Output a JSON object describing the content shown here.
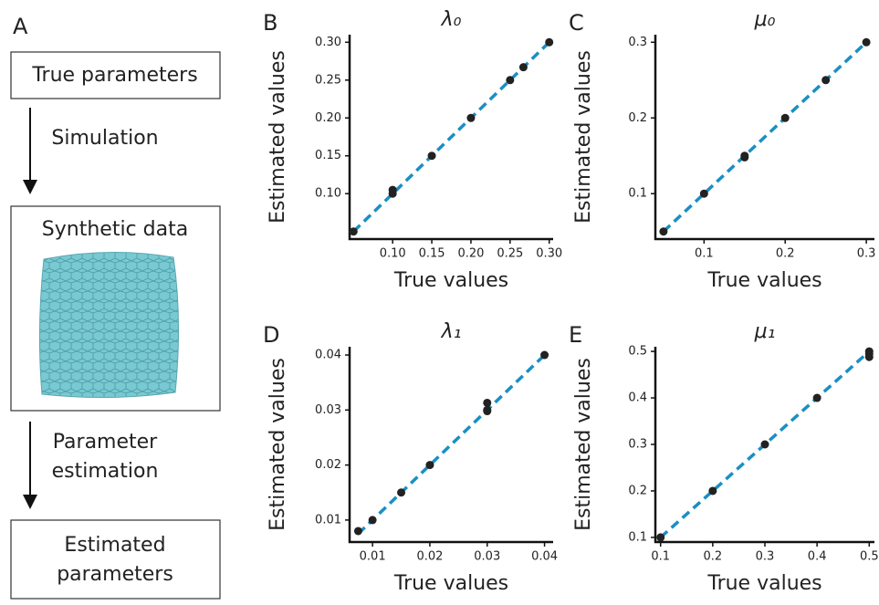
{
  "diagram": {
    "panel_label": "A",
    "box1": "True parameters",
    "step1": "Simulation",
    "box2": "Synthetic data",
    "step2_line1": "Parameter",
    "step2_line2": "estimation",
    "box3_line1": "Estimated",
    "box3_line2": "parameters"
  },
  "chart_data": [
    {
      "type": "scatter",
      "panel_label": "B",
      "title": "λ₀",
      "xlabel": "True values",
      "ylabel": "Estimated values",
      "point_color": "#222222",
      "line_color": "#1a8fc4",
      "x": [
        0.05,
        0.1,
        0.1,
        0.15,
        0.2,
        0.25,
        0.267,
        0.3
      ],
      "values": [
        0.05,
        0.105,
        0.1,
        0.15,
        0.2,
        0.25,
        0.267,
        0.3
      ],
      "xlim": [
        0.045,
        0.305
      ],
      "ylim": [
        0.04,
        0.31
      ],
      "xticks": [
        {
          "value": 0.1,
          "label": "0.10"
        },
        {
          "value": 0.15,
          "label": "0.15"
        },
        {
          "value": 0.2,
          "label": "0.20"
        },
        {
          "value": 0.25,
          "label": "0.25"
        },
        {
          "value": 0.3,
          "label": "0.30"
        }
      ],
      "yticks": [
        {
          "value": 0.1,
          "label": "0.10"
        },
        {
          "value": 0.15,
          "label": "0.15"
        },
        {
          "value": 0.2,
          "label": "0.20"
        },
        {
          "value": 0.25,
          "label": "0.25"
        },
        {
          "value": 0.3,
          "label": "0.30"
        }
      ]
    },
    {
      "type": "scatter",
      "panel_label": "C",
      "title": "μ₀",
      "xlabel": "True values",
      "ylabel": "Estimated values",
      "point_color": "#222222",
      "line_color": "#1a8fc4",
      "x": [
        0.05,
        0.1,
        0.15,
        0.15,
        0.2,
        0.25,
        0.3
      ],
      "values": [
        0.05,
        0.1,
        0.15,
        0.148,
        0.2,
        0.25,
        0.3
      ],
      "xlim": [
        0.04,
        0.31
      ],
      "ylim": [
        0.04,
        0.31
      ],
      "xticks": [
        0.1,
        0.2,
        0.3
      ],
      "yticks": [
        0.1,
        0.2,
        0.3
      ]
    },
    {
      "type": "scatter",
      "panel_label": "D",
      "title": "λ₁",
      "xlabel": "True values",
      "ylabel": "Estimated values",
      "point_color": "#222222",
      "line_color": "#1a8fc4",
      "x": [
        0.0075,
        0.01,
        0.015,
        0.02,
        0.03,
        0.03,
        0.03,
        0.04
      ],
      "values": [
        0.008,
        0.01,
        0.015,
        0.02,
        0.0313,
        0.03,
        0.0298,
        0.04
      ],
      "xlim": [
        0.006,
        0.0415
      ],
      "ylim": [
        0.006,
        0.0415
      ],
      "xticks": [
        0.01,
        0.02,
        0.03,
        0.04
      ],
      "yticks": [
        0.01,
        0.02,
        0.03,
        0.04
      ]
    },
    {
      "type": "scatter",
      "panel_label": "E",
      "title": "μ₁",
      "xlabel": "True values",
      "ylabel": "Estimated values",
      "point_color": "#222222",
      "line_color": "#1a8fc4",
      "x": [
        0.1,
        0.2,
        0.3,
        0.4,
        0.5,
        0.5,
        0.5
      ],
      "values": [
        0.1,
        0.2,
        0.3,
        0.4,
        0.5,
        0.495,
        0.488
      ],
      "xlim": [
        0.09,
        0.51
      ],
      "ylim": [
        0.09,
        0.51
      ],
      "xticks": [
        0.1,
        0.2,
        0.3,
        0.4,
        0.5
      ],
      "yticks": [
        0.1,
        0.2,
        0.3,
        0.4,
        0.5
      ]
    }
  ]
}
